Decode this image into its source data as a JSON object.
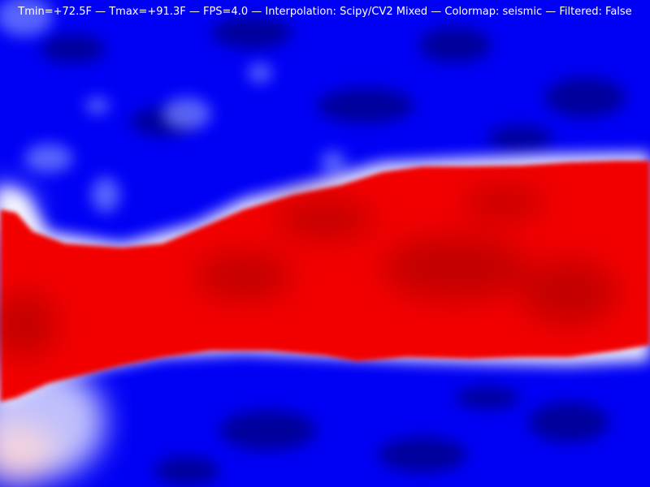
{
  "status_line": {
    "text": "Tmin=+72.5F — Tmax=+91.3F — FPS=4.0 — Interpolation: Scipy/CV2 Mixed — Colormap: seismic — Filtered: False"
  },
  "colors": {
    "cold": "#0000ff",
    "deep_cold": "#00006e",
    "neutral": "#ffffff",
    "hot": "#ff0000",
    "deep_hot": "#8a0000"
  }
}
